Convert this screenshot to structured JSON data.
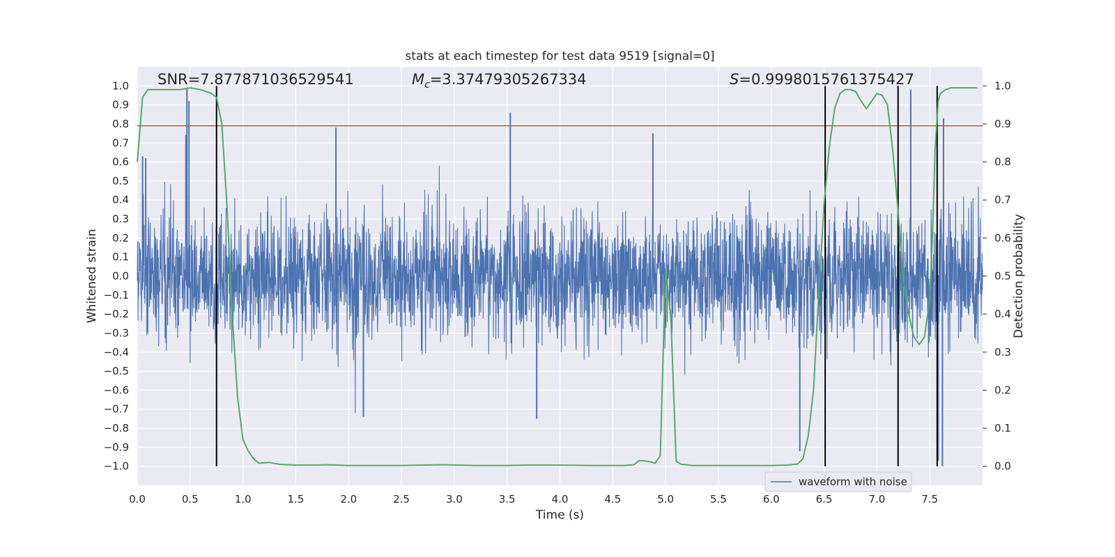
{
  "chart_data": {
    "type": "line",
    "title": "stats at each timestep for test data 9519 [signal=0]",
    "xlabel": "Time (s)",
    "ylabel_left": "Whitened strain",
    "ylabel_right": "Detection probability",
    "xlim": [
      0.0,
      8.0
    ],
    "ylim_left": [
      -1.1,
      1.1
    ],
    "ylim_right": [
      -0.05,
      1.05
    ],
    "x_ticks": [
      "0.0",
      "0.5",
      "1.0",
      "1.5",
      "2.0",
      "2.5",
      "3.0",
      "3.5",
      "4.0",
      "4.5",
      "5.0",
      "5.5",
      "6.0",
      "6.5",
      "7.0",
      "7.5"
    ],
    "y_ticks_left": [
      "1.0",
      "0.9",
      "0.8",
      "0.7",
      "0.6",
      "0.5",
      "0.4",
      "0.3",
      "0.2",
      "0.1",
      "0.0",
      "−0.1",
      "−0.2",
      "−0.3",
      "−0.4",
      "−0.5",
      "−0.6",
      "−0.7",
      "−0.8",
      "−0.9",
      "−1.0"
    ],
    "y_ticks_right": [
      "1.0",
      "0.9",
      "0.8",
      "0.7",
      "0.6",
      "0.5",
      "0.4",
      "0.3",
      "0.2",
      "0.1",
      "0.0"
    ],
    "annotations": {
      "snr": "SNR=7.877871036529541",
      "mc": "=3.37479305267334",
      "mc_symbol": "M",
      "mc_sub": "c",
      "s": "=0.9998015761375427",
      "s_symbol": "S"
    },
    "threshold": {
      "value": 0.79,
      "axis": "left",
      "color": "#c44e52"
    },
    "vlines": {
      "x": [
        0.75,
        6.51,
        7.2,
        7.57
      ],
      "ymin": -1.0,
      "ymax": 1.0,
      "color": "#000000"
    },
    "series": [
      {
        "name": "waveform with noise",
        "axis": "left",
        "color": "#4c72b0",
        "kind": "noise",
        "note": "dense noisy whitened strain sampled across the full 0-8 s window; core amplitude about +/-0.2 to +/-0.4",
        "sigma": 0.17,
        "spikes": [
          {
            "x": 0.47,
            "y": 0.99
          },
          {
            "x": 0.49,
            "y": 0.92
          },
          {
            "x": 0.46,
            "y": 0.74
          },
          {
            "x": 1.88,
            "y": 0.78
          },
          {
            "x": 3.53,
            "y": 0.86
          },
          {
            "x": 4.88,
            "y": 0.75
          },
          {
            "x": 7.32,
            "y": 0.98
          },
          {
            "x": 7.62,
            "y": -1.0
          },
          {
            "x": 6.27,
            "y": -0.92
          },
          {
            "x": 3.78,
            "y": -0.75
          },
          {
            "x": 2.14,
            "y": -0.74
          },
          {
            "x": 0.05,
            "y": 0.63
          },
          {
            "x": 0.08,
            "y": 0.62
          },
          {
            "x": 7.63,
            "y": 0.83
          },
          {
            "x": 7.58,
            "y": -0.97
          }
        ]
      },
      {
        "name": "detection probability",
        "axis": "right",
        "color": "#55a868",
        "x": [
          0.0,
          0.05,
          0.1,
          0.2,
          0.3,
          0.4,
          0.5,
          0.6,
          0.65,
          0.7,
          0.75,
          0.8,
          0.85,
          0.9,
          0.95,
          1.0,
          1.05,
          1.1,
          1.15,
          1.25,
          1.35,
          1.5,
          1.7,
          1.8,
          2.0,
          2.2,
          2.5,
          2.7,
          2.9,
          3.2,
          3.5,
          3.7,
          4.0,
          4.3,
          4.5,
          4.6,
          4.7,
          4.75,
          4.8,
          4.85,
          4.9,
          4.95,
          5.0,
          5.05,
          5.1,
          5.15,
          5.2,
          5.25,
          5.3,
          5.5,
          5.8,
          6.0,
          6.15,
          6.25,
          6.3,
          6.35,
          6.4,
          6.45,
          6.5,
          6.55,
          6.6,
          6.65,
          6.7,
          6.75,
          6.8,
          6.85,
          6.9,
          6.95,
          7.0,
          7.05,
          7.1,
          7.15,
          7.2,
          7.25,
          7.3,
          7.35,
          7.4,
          7.45,
          7.5,
          7.53,
          7.55,
          7.58,
          7.6,
          7.65,
          7.7,
          7.8,
          7.95
        ],
        "y": [
          0.8,
          0.97,
          0.99,
          0.99,
          0.99,
          0.99,
          0.995,
          0.99,
          0.985,
          0.98,
          0.97,
          0.9,
          0.68,
          0.39,
          0.18,
          0.07,
          0.04,
          0.02,
          0.008,
          0.01,
          0.005,
          0.003,
          0.003,
          0.004,
          0.002,
          0.002,
          0.002,
          0.003,
          0.004,
          0.002,
          0.002,
          0.003,
          0.003,
          0.002,
          0.002,
          0.002,
          0.004,
          0.015,
          0.014,
          0.012,
          0.008,
          0.028,
          0.52,
          0.39,
          0.013,
          0.005,
          0.004,
          0.002,
          0.002,
          0.002,
          0.002,
          0.002,
          0.003,
          0.006,
          0.02,
          0.08,
          0.2,
          0.46,
          0.69,
          0.84,
          0.94,
          0.98,
          0.99,
          0.99,
          0.985,
          0.96,
          0.94,
          0.96,
          0.98,
          0.975,
          0.95,
          0.83,
          0.67,
          0.49,
          0.4,
          0.34,
          0.32,
          0.34,
          0.44,
          0.64,
          0.83,
          0.96,
          0.98,
          0.99,
          0.995,
          0.995,
          0.995
        ]
      }
    ],
    "legend": {
      "placement": "lower-right",
      "entries": [
        "waveform with noise"
      ]
    }
  }
}
